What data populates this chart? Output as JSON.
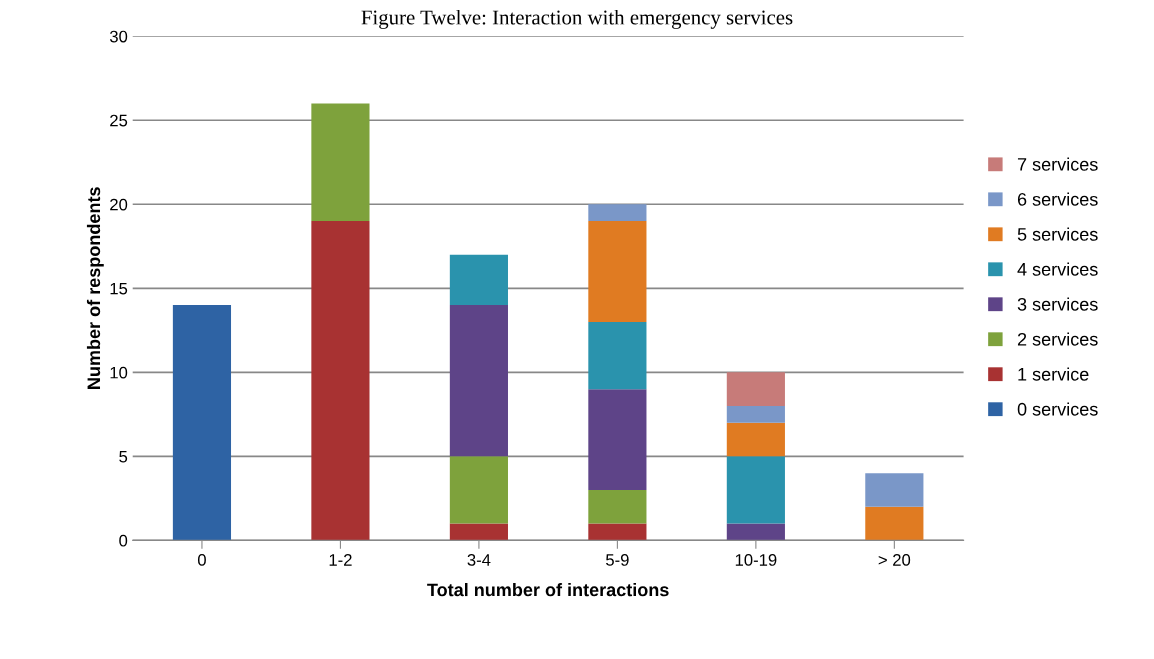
{
  "chart_data": {
    "type": "bar",
    "stacked": true,
    "title": "Figure Twelve: Interaction with emergency services",
    "xlabel": "Total number of interactions",
    "ylabel": "Number of respondents",
    "categories": [
      "0",
      "1-2",
      "3-4",
      "5-9",
      "10-19",
      "> 20"
    ],
    "series": [
      {
        "name": "0 services",
        "color": "#2e63a4",
        "values": [
          14,
          0,
          0,
          0,
          0,
          0
        ]
      },
      {
        "name": "1 service",
        "color": "#a83232",
        "values": [
          0,
          19,
          1,
          1,
          0,
          0
        ]
      },
      {
        "name": "2 services",
        "color": "#7ea23c",
        "values": [
          0,
          7,
          4,
          2,
          0,
          0
        ]
      },
      {
        "name": "3 services",
        "color": "#5e4488",
        "values": [
          0,
          0,
          9,
          6,
          1,
          0
        ]
      },
      {
        "name": "4 services",
        "color": "#2a93ad",
        "values": [
          0,
          0,
          3,
          4,
          4,
          0
        ]
      },
      {
        "name": "5 services",
        "color": "#e07b22",
        "values": [
          0,
          0,
          0,
          6,
          2,
          2
        ]
      },
      {
        "name": "6 services",
        "color": "#7a97c8",
        "values": [
          0,
          0,
          0,
          1,
          1,
          2
        ]
      },
      {
        "name": "7 services",
        "color": "#c77b79",
        "values": [
          0,
          0,
          0,
          0,
          2,
          0
        ]
      }
    ],
    "ylim": [
      0,
      30
    ],
    "yticks": [
      0,
      5,
      10,
      15,
      20,
      25,
      30
    ],
    "grid": "y",
    "legend": "right"
  }
}
